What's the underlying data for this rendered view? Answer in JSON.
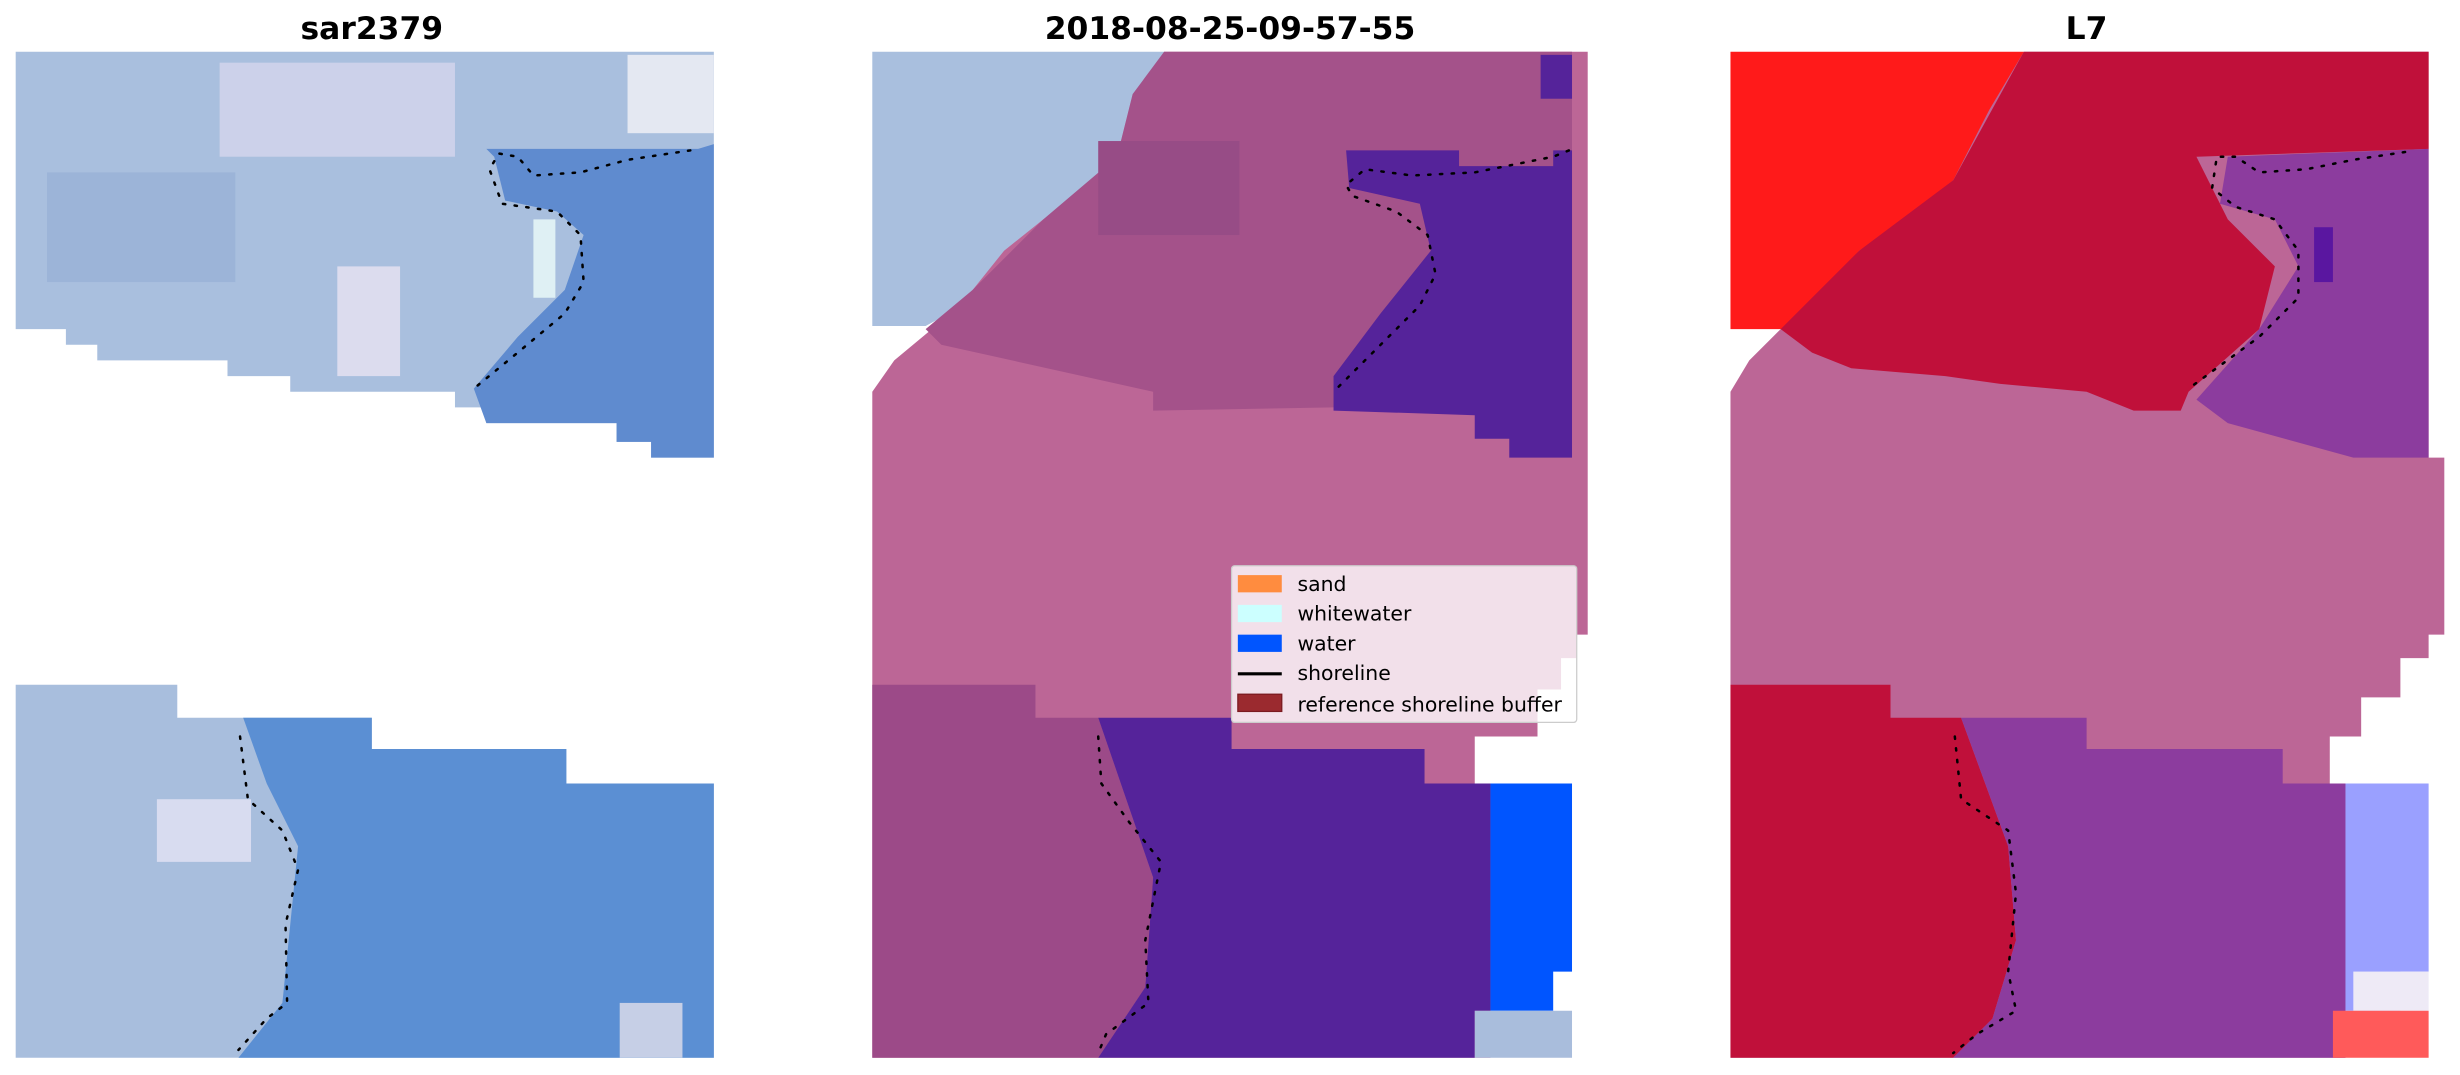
{
  "figure": {
    "panels": [
      {
        "title": "sar2379",
        "content": "satellite RGB image"
      },
      {
        "title": "2018-08-25-09-57-55",
        "content": "classified image"
      },
      {
        "title": "L7",
        "content": "MNDWI image"
      }
    ],
    "legend": {
      "items": [
        {
          "label": "sand",
          "color": "#ff8c3f",
          "kind": "patch"
        },
        {
          "label": "whitewater",
          "color": "#ccffff",
          "kind": "patch"
        },
        {
          "label": "water",
          "color": "#0055ff",
          "kind": "patch"
        },
        {
          "label": "shoreline",
          "color": "#000000",
          "kind": "line"
        },
        {
          "label": "reference shoreline buffer",
          "color": "#9b2a2f",
          "kind": "patch"
        }
      ]
    }
  }
}
